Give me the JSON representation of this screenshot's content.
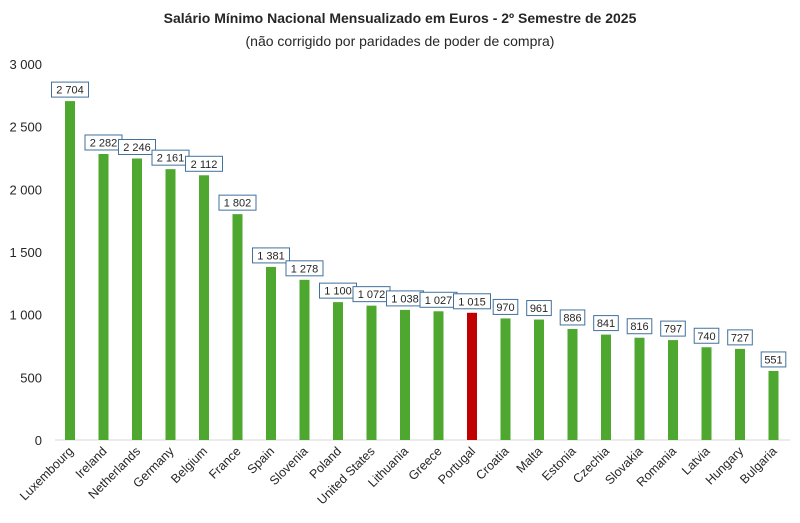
{
  "chart_data": {
    "type": "bar",
    "title": "Salário Mínimo Nacional Mensualizado em Euros - 2º Semestre de 2025",
    "subtitle": "(não corrigido por paridades de poder de compra)",
    "xlabel": "",
    "ylabel": "",
    "ylim": [
      0,
      3000
    ],
    "yticks": [
      0,
      500,
      1000,
      1500,
      2000,
      2500,
      3000
    ],
    "ytick_labels": [
      "0",
      "500",
      "1 000",
      "1 500",
      "2 000",
      "2 500",
      "3 000"
    ],
    "grid": false,
    "categories": [
      "Luxembourg",
      "Ireland",
      "Netherlands",
      "Germany",
      "Belgium",
      "France",
      "Spain",
      "Slovenia",
      "Poland",
      "United States",
      "Lithuania",
      "Greece",
      "Portugal",
      "Croatia",
      "Malta",
      "Estonia",
      "Czechia",
      "Slovakia",
      "Romania",
      "Latvia",
      "Hungary",
      "Bulgaria"
    ],
    "values": [
      2704,
      2282,
      2246,
      2161,
      2112,
      1802,
      1381,
      1278,
      1100,
      1072,
      1038,
      1027,
      1015,
      970,
      961,
      886,
      841,
      816,
      797,
      740,
      727,
      551
    ],
    "data_labels": [
      "2 704",
      "2 282",
      "2 246",
      "2 161",
      "2 112",
      "1 802",
      "1 381",
      "1 278",
      "1 100",
      "1 072",
      "1 038",
      "1 027",
      "1 015",
      "970",
      "961",
      "886",
      "841",
      "816",
      "797",
      "740",
      "727",
      "551"
    ],
    "highlight_category": "Portugal",
    "colors": {
      "bar": "#4ea72e",
      "highlight": "#c00000",
      "label_border": "#41719c",
      "axis": "#d9d9d9"
    }
  }
}
